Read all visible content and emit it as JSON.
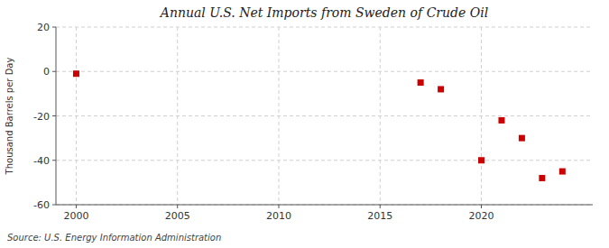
{
  "chart_data": {
    "type": "scatter",
    "title": "Annual U.S. Net Imports from Sweden of Crude Oil",
    "y_label": "Thousand Barrels per Day",
    "annotations": [
      "Source: U.S. Energy Information Administration"
    ],
    "x": [
      2000,
      2017,
      2018,
      2020,
      2021,
      2022,
      2023,
      2024
    ],
    "values": [
      -1,
      -5,
      -8,
      -40,
      -22,
      -30,
      -48,
      -45
    ],
    "color": "#cc0000",
    "marker": "square",
    "xlim": [
      1999,
      2025.5
    ],
    "ylim": [
      -60,
      20
    ],
    "xticks": [
      2000,
      2005,
      2010,
      2015,
      2020
    ],
    "yticks": [
      -60,
      -40,
      -20,
      0,
      20
    ],
    "grid": true
  }
}
